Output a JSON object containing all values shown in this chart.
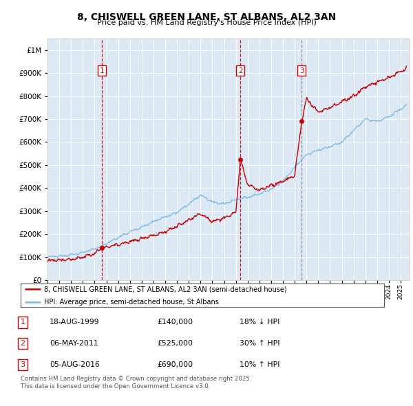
{
  "title1": "8, CHISWELL GREEN LANE, ST ALBANS, AL2 3AN",
  "title2": "Price paid vs. HM Land Registry's House Price Index (HPI)",
  "bg_color": "#dce9f5",
  "red_color": "#cc0000",
  "blue_color": "#7ab8e8",
  "sale_dates_f": [
    1999.63,
    2011.38,
    2016.6
  ],
  "sale_prices": [
    140000,
    525000,
    690000
  ],
  "sale_labels": [
    "1",
    "2",
    "3"
  ],
  "sale_vline_colors": [
    "#cc0000",
    "#cc0000",
    "#888888"
  ],
  "sale_vline_styles": [
    "--",
    "--",
    "--"
  ],
  "legend_line1": "8, CHISWELL GREEN LANE, ST ALBANS, AL2 3AN (semi-detached house)",
  "legend_line2": "HPI: Average price, semi-detached house, St Albans",
  "table_data": [
    {
      "num": "1",
      "date": "18-AUG-1999",
      "price": "£140,000",
      "hpi": "18% ↓ HPI"
    },
    {
      "num": "2",
      "date": "06-MAY-2011",
      "price": "£525,000",
      "hpi": "30% ↑ HPI"
    },
    {
      "num": "3",
      "date": "05-AUG-2016",
      "price": "£690,000",
      "hpi": "10% ↑ HPI"
    }
  ],
  "footer": "Contains HM Land Registry data © Crown copyright and database right 2025.\nThis data is licensed under the Open Government Licence v3.0.",
  "ylim": [
    0,
    1050000
  ],
  "xlim_start": 1995.0,
  "xlim_end": 2025.7
}
